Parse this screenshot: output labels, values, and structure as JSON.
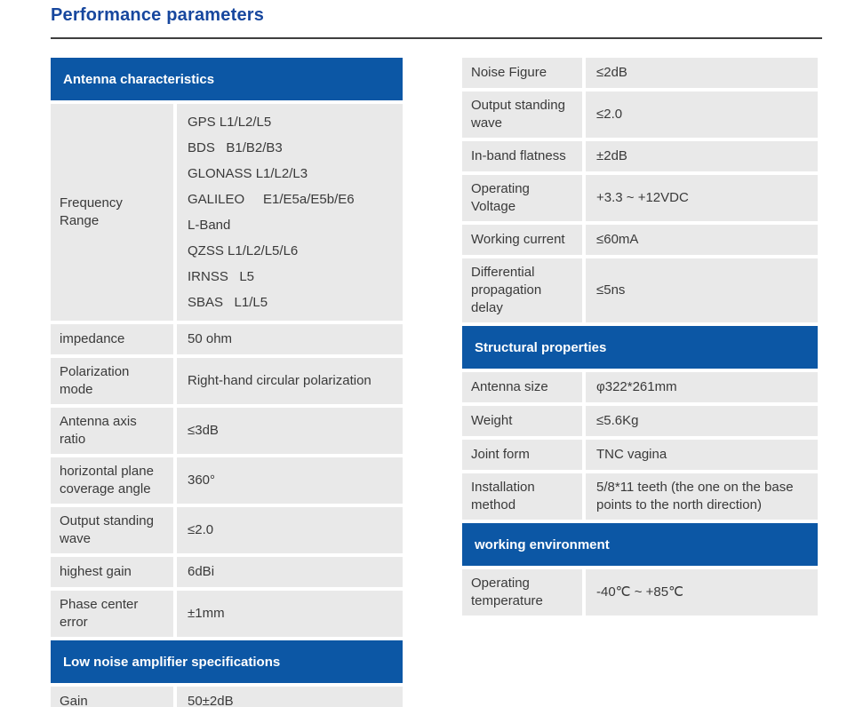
{
  "page": {
    "title": "Performance parameters"
  },
  "colors": {
    "header_bg": "#0c57a5",
    "title": "#17479e",
    "row_bg": "#e9e9e9",
    "text": "#3a3a3a",
    "header_text": "#ffffff",
    "divider": "#3f3f3f"
  },
  "left": {
    "antenna": {
      "header": "Antenna characteristics",
      "rows": [
        {
          "label": "Frequency Range",
          "value": "GPS L1/L2/L5\nBDS   B1/B2/B3\nGLONASS L1/L2/L3\nGALILEO     E1/E5a/E5b/E6\nL-Band\nQZSS L1/L2/L5/L6\nIRNSS   L5\nSBAS   L1/L5"
        },
        {
          "label": "impedance",
          "value": "50 ohm"
        },
        {
          "label": "Polarization\nmode",
          "value": "Right-hand circular polarization"
        },
        {
          "label": "Antenna axis ratio",
          "value": "≤3dB"
        },
        {
          "label": "horizontal plane\ncoverage angle",
          "value": "360°"
        },
        {
          "label": "Output standing\nwave",
          "value": "≤2.0"
        },
        {
          "label": "highest gain",
          "value": "6dBi"
        },
        {
          "label": "Phase center\nerror",
          "value": "±1mm"
        }
      ]
    },
    "lna": {
      "header": "Low noise amplifier specifications",
      "rows": [
        {
          "label": "Gain",
          "value": "50±2dB"
        }
      ]
    }
  },
  "right": {
    "lna_cont": {
      "rows": [
        {
          "label": "Noise Figure",
          "value": "≤2dB"
        },
        {
          "label": "Output standing\nwave",
          "value": "≤2.0"
        },
        {
          "label": "In-band flatness",
          "value": "±2dB"
        },
        {
          "label": "Operating\nVoltage",
          "value": "+3.3 ~ +12VDC"
        },
        {
          "label": "Working current",
          "value": "≤60mA"
        },
        {
          "label": "Differential\npropagation\ndelay",
          "value": "≤5ns"
        }
      ]
    },
    "structural": {
      "header": "Structural properties",
      "rows": [
        {
          "label": "Antenna size",
          "value": "φ322*261mm"
        },
        {
          "label": "Weight",
          "value": "≤5.6Kg"
        },
        {
          "label": "Joint form",
          "value": "TNC vagina"
        },
        {
          "label": "Installation\nmethod",
          "value": "5/8*11 teeth (the one on the base\npoints to the north direction)"
        }
      ]
    },
    "environment": {
      "header": "working environment",
      "rows": [
        {
          "label": "Operating\ntemperature",
          "value": "-40℃ ~ +85℃"
        }
      ]
    }
  }
}
